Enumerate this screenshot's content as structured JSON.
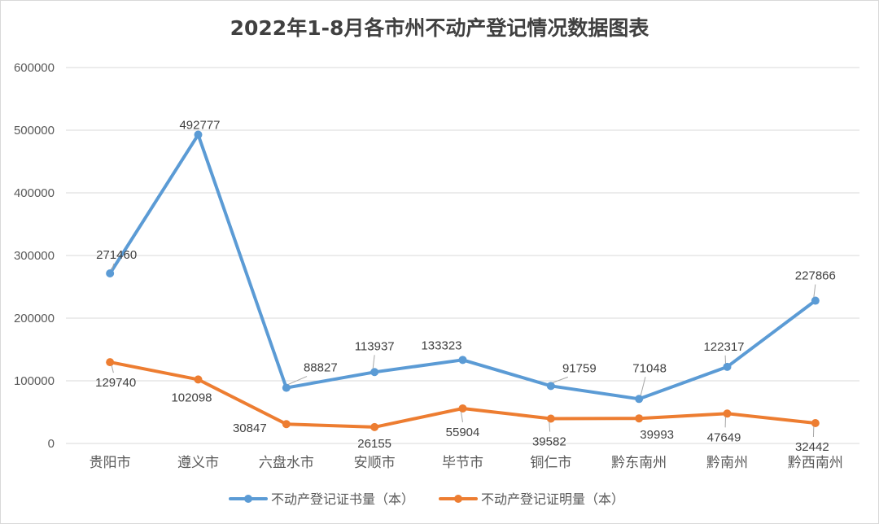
{
  "chart_data": {
    "type": "line",
    "title": "2022年1-8月各市州不动产登记情况数据图表",
    "categories": [
      "贵阳市",
      "遵义市",
      "六盘水市",
      "安顺市",
      "毕节市",
      "铜仁市",
      "黔东南州",
      "黔南州",
      "黔西南州"
    ],
    "series": [
      {
        "name": "不动产登记证书量（本）",
        "color": "#5b9bd5",
        "values": [
          271460,
          492777,
          88827,
          113937,
          133323,
          91759,
          71048,
          122317,
          227866
        ]
      },
      {
        "name": "不动产登记证明量（本）",
        "color": "#ed7d31",
        "values": [
          129740,
          102098,
          30847,
          26155,
          55904,
          39582,
          39993,
          47649,
          32442
        ]
      }
    ],
    "ylim": [
      0,
      600000
    ],
    "yticks": [
      "0",
      "100000",
      "200000",
      "300000",
      "400000",
      "500000",
      "600000"
    ],
    "grid": true,
    "legend": "bottom"
  }
}
